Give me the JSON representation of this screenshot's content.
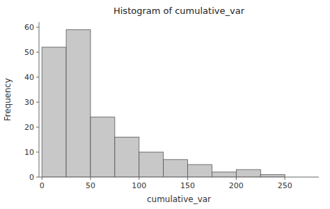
{
  "chart_data": {
    "type": "histogram",
    "title": "Histogram of cumulative_var",
    "xlabel": "cumulative_var",
    "ylabel": "Frequency",
    "bins": [
      0,
      25,
      50,
      75,
      100,
      125,
      150,
      175,
      200,
      225,
      250
    ],
    "values": [
      52,
      59,
      24,
      16,
      10,
      7,
      5,
      2,
      3,
      1
    ],
    "color": "#c8c8c8",
    "xlim": [
      -3,
      285
    ],
    "ylim": [
      0,
      62
    ],
    "xticks": [
      0,
      50,
      100,
      150,
      200,
      250
    ],
    "yticks": [
      0,
      10,
      20,
      30,
      40,
      50,
      60
    ],
    "grid": false
  }
}
